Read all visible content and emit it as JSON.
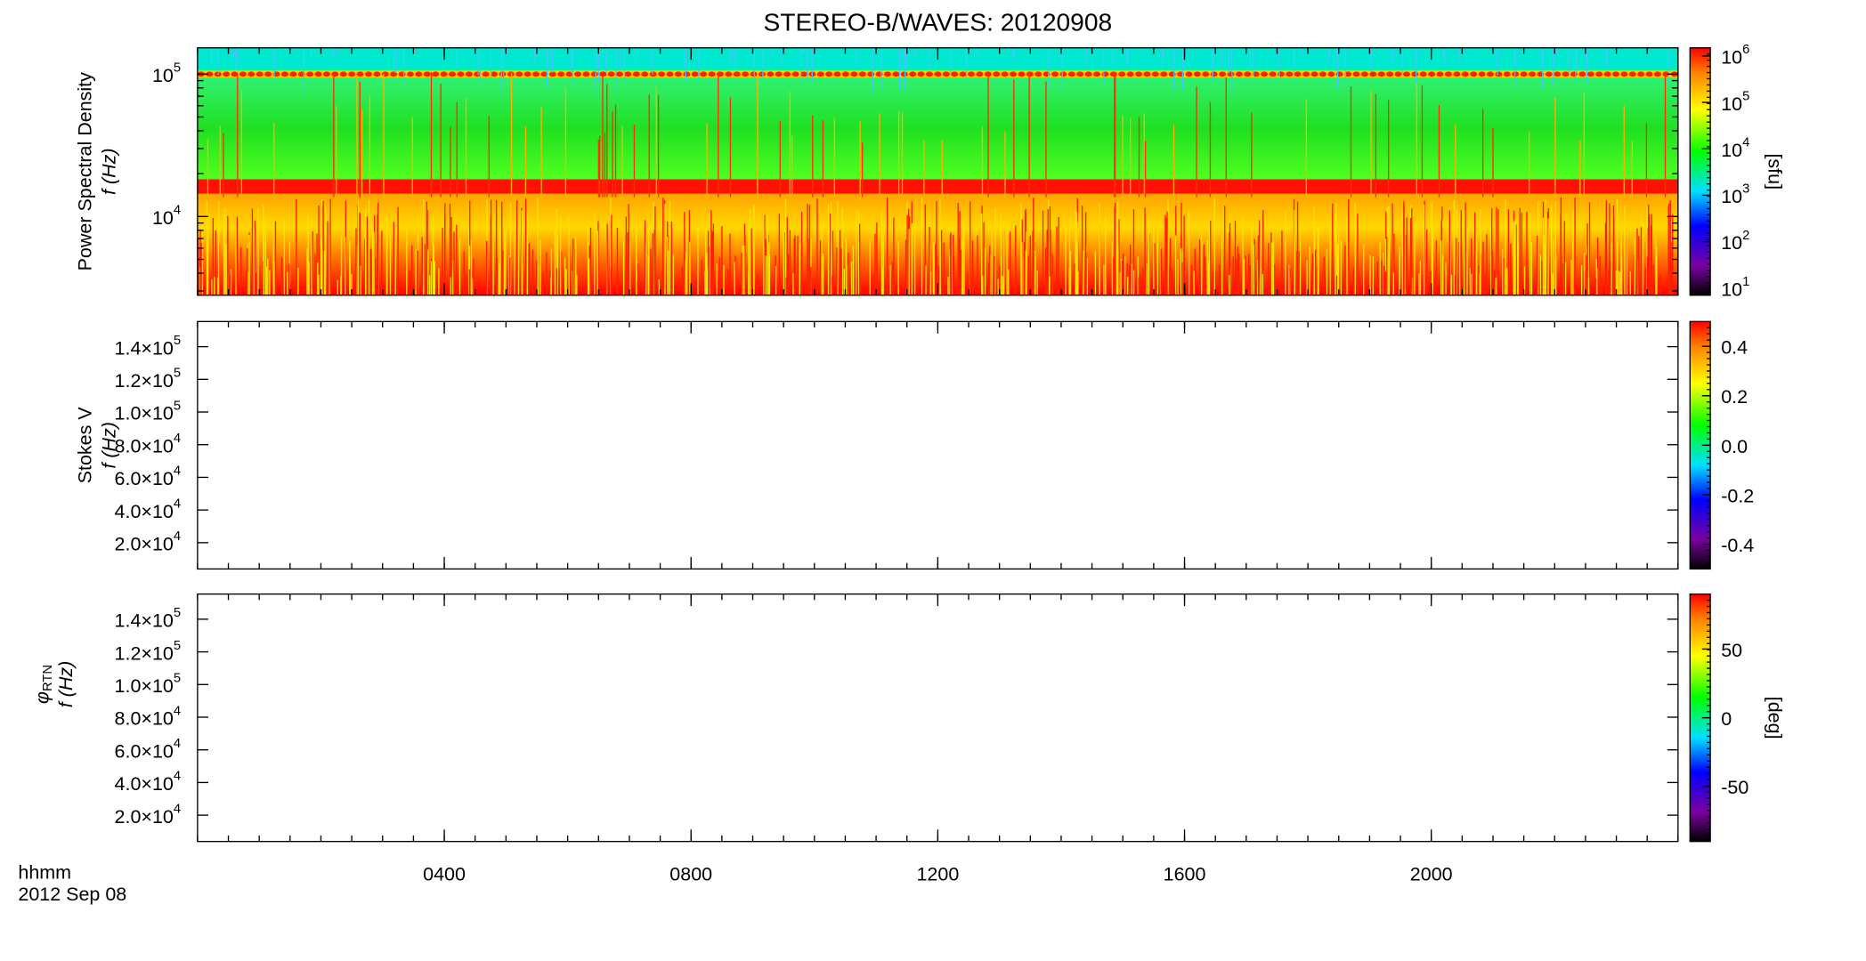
{
  "chart_data": [
    {
      "type": "spectrogram",
      "title": "STEREO-B/WAVES: 20120908",
      "ylabel": [
        "Power Spectral Density",
        "f (Hz)"
      ],
      "ylog": true,
      "ylim": [
        2800,
        153000
      ],
      "yticks": [
        {
          "value": 10000,
          "label": "10",
          "exponent": "4"
        },
        {
          "value": 100000,
          "label": "10",
          "exponent": "5"
        }
      ],
      "xlim": [
        0,
        24
      ],
      "colorbar": {
        "label": "[sfu]",
        "log": true,
        "lim": [
          7,
          1500000
        ],
        "ticks": [
          {
            "value": 10,
            "label": "10",
            "exponent": "1"
          },
          {
            "value": 100,
            "label": "10",
            "exponent": "2"
          },
          {
            "value": 1000,
            "label": "10",
            "exponent": "3"
          },
          {
            "value": 10000,
            "label": "10",
            "exponent": "4"
          },
          {
            "value": 100000,
            "label": "10",
            "exponent": "5"
          },
          {
            "value": 1000000,
            "label": "10",
            "exponent": "6"
          }
        ]
      }
    },
    {
      "type": "spectrogram",
      "ylabel": [
        "Stokes V",
        "f (Hz)"
      ],
      "ylog": false,
      "ylim": [
        3900,
        155400
      ],
      "yticks": [
        {
          "value": 20000,
          "label": "2.0×10",
          "exponent": "4"
        },
        {
          "value": 40000,
          "label": "4.0×10",
          "exponent": "4"
        },
        {
          "value": 60000,
          "label": "6.0×10",
          "exponent": "4"
        },
        {
          "value": 80000,
          "label": "8.0×10",
          "exponent": "4"
        },
        {
          "value": 100000,
          "label": "1.0×10",
          "exponent": "5"
        },
        {
          "value": 120000,
          "label": "1.2×10",
          "exponent": "5"
        },
        {
          "value": 140000,
          "label": "1.4×10",
          "exponent": "5"
        }
      ],
      "xlim": [
        0,
        24
      ],
      "colorbar": {
        "log": false,
        "lim": [
          -0.5,
          0.5
        ],
        "ticks": [
          -0.4,
          -0.2,
          {
            "value": 0,
            "label": "0.0"
          },
          0.2,
          0.4
        ]
      }
    },
    {
      "type": "spectrogram",
      "ylabel": [
        "φ",
        "RTN",
        "f (Hz)"
      ],
      "ylog": false,
      "ylim": [
        3900,
        155400
      ],
      "yticks": [
        {
          "value": 20000,
          "label": "2.0×10",
          "exponent": "4"
        },
        {
          "value": 40000,
          "label": "4.0×10",
          "exponent": "4"
        },
        {
          "value": 60000,
          "label": "6.0×10",
          "exponent": "4"
        },
        {
          "value": 80000,
          "label": "8.0×10",
          "exponent": "4"
        },
        {
          "value": 100000,
          "label": "1.0×10",
          "exponent": "5"
        },
        {
          "value": 120000,
          "label": "1.2×10",
          "exponent": "5"
        },
        {
          "value": 140000,
          "label": "1.4×10",
          "exponent": "5"
        }
      ],
      "xlim": [
        0,
        24
      ],
      "xticks": [
        {
          "value": 4,
          "label": "0400"
        },
        {
          "value": 8,
          "label": "0800"
        },
        {
          "value": 12,
          "label": "1200"
        },
        {
          "value": 16,
          "label": "1600"
        },
        {
          "value": 20,
          "label": "2000"
        }
      ],
      "xlabel": [
        "hhmm",
        "2012 Sep 08"
      ],
      "colorbar": {
        "label": "[deg]",
        "log": false,
        "lim": [
          -90,
          90
        ],
        "ticks": [
          -50,
          0,
          50
        ]
      }
    }
  ]
}
